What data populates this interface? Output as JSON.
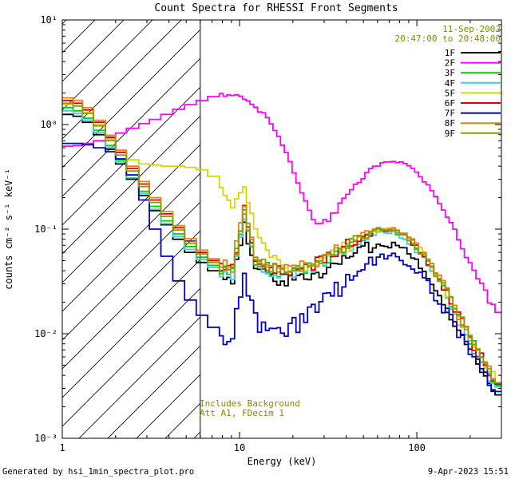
{
  "title": "Count Spectra for RHESSI Front Segments",
  "annotations": {
    "date": "11-Sep-2002",
    "time_range": "20:47:00 to 20:48:00",
    "background_note": "Includes Background",
    "attenuator_note": "Att A1, FDecim 1"
  },
  "footer": {
    "left": "Generated by hsi_1min_spectra_plot.pro",
    "right": "9-Apr-2023 15:51"
  },
  "colors": {
    "background": "#ffffff",
    "axis": "#000000",
    "annotation_text": "#7f8c00"
  },
  "chart_data": {
    "type": "line",
    "title": "Count Spectra for RHESSI Front Segments",
    "xlabel": "Energy (keV)",
    "ylabel": "counts cm⁻² s⁻¹ keV⁻¹",
    "xscale": "log",
    "yscale": "log",
    "xlim": [
      1,
      300
    ],
    "ylim": [
      0.001,
      10
    ],
    "grid": false,
    "legend_position": "top-right",
    "vline_x": 6.0,
    "hatch_region": [
      1,
      6.0
    ],
    "xticks": {
      "values": [
        1,
        10,
        100
      ],
      "labels": [
        "1",
        "10",
        "100"
      ]
    },
    "yticks": {
      "values": [
        0.001,
        0.01,
        0.1,
        1,
        10
      ],
      "labels": [
        "10⁻³",
        "10⁻²",
        "10⁻¹",
        "10⁰",
        "10¹"
      ]
    },
    "x": [
      1.0,
      1.15,
      1.3,
      1.5,
      1.75,
      2.0,
      2.3,
      2.7,
      3.1,
      3.6,
      4.2,
      4.9,
      5.7,
      6.6,
      7.7,
      8.9,
      10.4,
      12.0,
      14.0,
      16.2,
      18.8,
      21.9,
      25.4,
      29.5,
      34.2,
      39.7,
      46.1,
      53.5,
      62.1,
      72.1,
      83.7,
      97.2,
      112.8,
      131.0,
      152.0,
      176.5,
      204.9,
      237.9,
      276.1
    ],
    "series": [
      {
        "name": "1F",
        "color": "#000000",
        "values": [
          1.25,
          1.2,
          1.05,
          0.8,
          0.58,
          0.42,
          0.3,
          0.21,
          0.15,
          0.11,
          0.08,
          0.06,
          0.048,
          0.04,
          0.036,
          0.034,
          0.11,
          0.042,
          0.036,
          0.033,
          0.032,
          0.033,
          0.036,
          0.04,
          0.046,
          0.053,
          0.061,
          0.068,
          0.073,
          0.071,
          0.063,
          0.05,
          0.036,
          0.024,
          0.015,
          0.0092,
          0.0058,
          0.0038,
          0.0026
        ]
      },
      {
        "name": "2F",
        "color": "#ff00ff",
        "values": [
          0.62,
          0.63,
          0.66,
          0.7,
          0.76,
          0.83,
          0.92,
          1.02,
          1.12,
          1.25,
          1.4,
          1.55,
          1.7,
          1.85,
          1.95,
          1.9,
          1.75,
          1.5,
          1.15,
          0.8,
          0.45,
          0.22,
          0.125,
          0.115,
          0.15,
          0.21,
          0.29,
          0.37,
          0.43,
          0.45,
          0.42,
          0.35,
          0.26,
          0.18,
          0.115,
          0.068,
          0.04,
          0.024,
          0.016
        ]
      },
      {
        "name": "3F",
        "color": "#00cc00",
        "values": [
          1.45,
          1.35,
          1.15,
          0.88,
          0.63,
          0.46,
          0.33,
          0.23,
          0.165,
          0.12,
          0.09,
          0.068,
          0.054,
          0.045,
          0.04,
          0.038,
          0.15,
          0.05,
          0.042,
          0.039,
          0.038,
          0.04,
          0.044,
          0.05,
          0.058,
          0.068,
          0.079,
          0.09,
          0.098,
          0.096,
          0.085,
          0.067,
          0.048,
          0.032,
          0.02,
          0.012,
          0.0075,
          0.0048,
          0.0032
        ]
      },
      {
        "name": "4F",
        "color": "#33d6d6",
        "values": [
          1.35,
          1.28,
          1.1,
          0.84,
          0.6,
          0.44,
          0.31,
          0.22,
          0.155,
          0.113,
          0.085,
          0.064,
          0.051,
          0.043,
          0.038,
          0.036,
          0.13,
          0.047,
          0.04,
          0.037,
          0.036,
          0.038,
          0.042,
          0.048,
          0.055,
          0.065,
          0.076,
          0.087,
          0.094,
          0.092,
          0.081,
          0.064,
          0.046,
          0.03,
          0.019,
          0.0115,
          0.0072,
          0.0046,
          0.0031
        ]
      },
      {
        "name": "5F",
        "color": "#d6d600",
        "values": [
          1.55,
          1.5,
          1.3,
          1.0,
          0.72,
          0.55,
          0.46,
          0.42,
          0.41,
          0.4,
          0.4,
          0.39,
          0.37,
          0.32,
          0.24,
          0.16,
          0.26,
          0.1,
          0.06,
          0.048,
          0.043,
          0.043,
          0.046,
          0.052,
          0.06,
          0.07,
          0.082,
          0.094,
          0.102,
          0.1,
          0.089,
          0.07,
          0.051,
          0.034,
          0.021,
          0.013,
          0.008,
          0.005,
          0.0034
        ]
      },
      {
        "name": "6F",
        "color": "#dd0000",
        "values": [
          1.7,
          1.6,
          1.38,
          1.05,
          0.75,
          0.54,
          0.38,
          0.27,
          0.19,
          0.14,
          0.103,
          0.077,
          0.06,
          0.05,
          0.044,
          0.041,
          0.16,
          0.053,
          0.045,
          0.041,
          0.04,
          0.042,
          0.046,
          0.052,
          0.06,
          0.07,
          0.081,
          0.092,
          0.099,
          0.097,
          0.086,
          0.068,
          0.049,
          0.033,
          0.0205,
          0.0125,
          0.0078,
          0.005,
          0.0033
        ]
      },
      {
        "name": "7F",
        "color": "#0000cc",
        "values": [
          0.66,
          0.66,
          0.64,
          0.6,
          0.55,
          0.47,
          0.33,
          0.19,
          0.1,
          0.055,
          0.032,
          0.021,
          0.015,
          0.0115,
          0.0095,
          0.0088,
          0.035,
          0.013,
          0.0105,
          0.0105,
          0.0115,
          0.0135,
          0.0165,
          0.0205,
          0.026,
          0.0325,
          0.04,
          0.048,
          0.054,
          0.0545,
          0.049,
          0.04,
          0.0295,
          0.0205,
          0.0135,
          0.0088,
          0.0058,
          0.004,
          0.0028
        ]
      },
      {
        "name": "8F",
        "color": "#e68312",
        "values": [
          1.8,
          1.7,
          1.45,
          1.1,
          0.79,
          0.57,
          0.4,
          0.285,
          0.2,
          0.147,
          0.108,
          0.081,
          0.063,
          0.052,
          0.046,
          0.043,
          0.17,
          0.056,
          0.047,
          0.043,
          0.042,
          0.044,
          0.048,
          0.054,
          0.062,
          0.072,
          0.084,
          0.095,
          0.102,
          0.1,
          0.088,
          0.07,
          0.05,
          0.034,
          0.021,
          0.013,
          0.008,
          0.0051,
          0.0034
        ]
      },
      {
        "name": "9F",
        "color": "#8e9c00",
        "values": [
          1.6,
          1.5,
          1.28,
          0.97,
          0.7,
          0.51,
          0.36,
          0.255,
          0.18,
          0.132,
          0.098,
          0.073,
          0.058,
          0.048,
          0.042,
          0.04,
          0.14,
          0.051,
          0.044,
          0.04,
          0.039,
          0.041,
          0.045,
          0.051,
          0.059,
          0.069,
          0.08,
          0.091,
          0.1,
          0.098,
          0.087,
          0.069,
          0.05,
          0.033,
          0.0205,
          0.0127,
          0.0079,
          0.005,
          0.0034
        ]
      }
    ]
  }
}
